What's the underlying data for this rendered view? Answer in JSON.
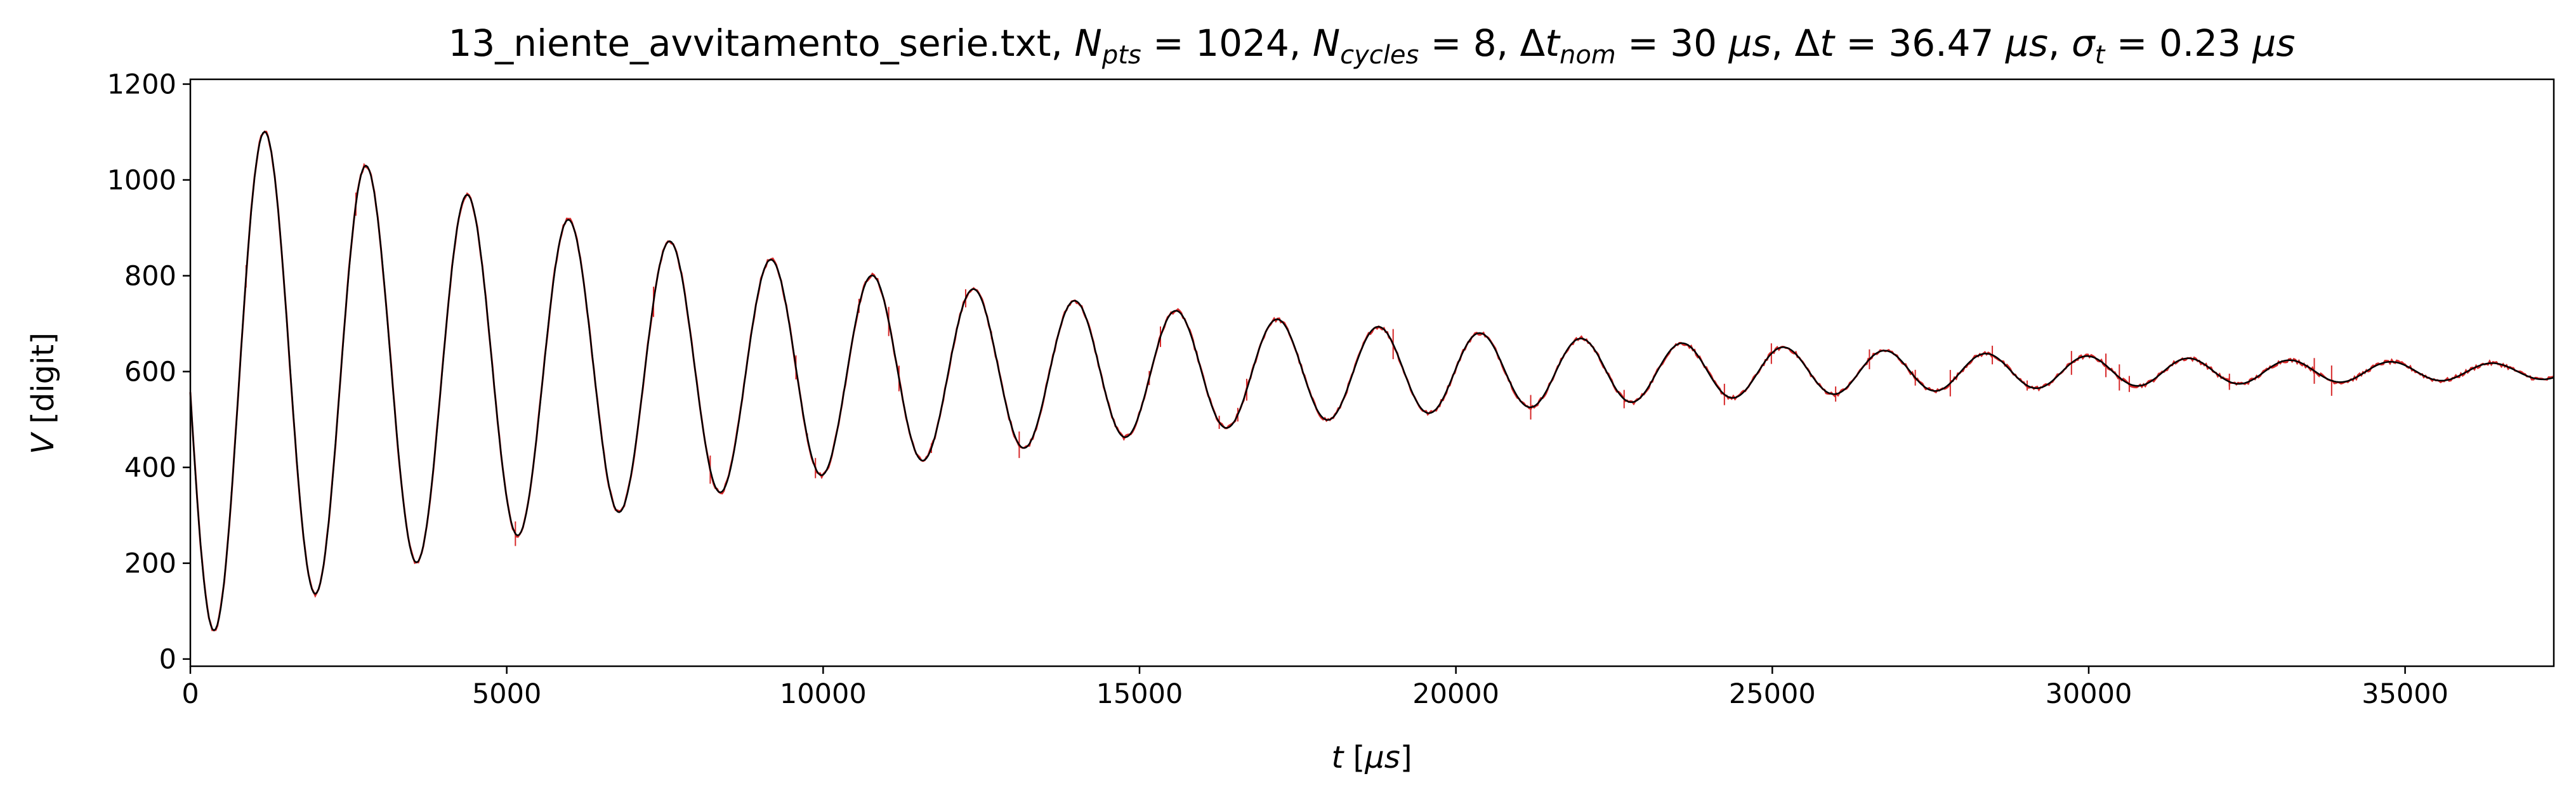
{
  "chart_data": {
    "type": "line",
    "title": {
      "file": "13_niente_avvitamento_serie.txt",
      "sep": ", ",
      "npts_sym": "N",
      "npts_sub": "pts",
      "npts_val": " = 1024",
      "ncyc_sym": "N",
      "ncyc_sub": "cycles",
      "ncyc_val": " = 8",
      "dtnom_delta": "Δ",
      "dtnom_sym": "t",
      "dtnom_sub": "nom",
      "dtnom_eq": " = 30 ",
      "dtnom_unit": "μs",
      "dt_delta": "Δ",
      "dt_sym": "t",
      "dt_eq": " = 36.47 ",
      "dt_unit": "μs",
      "sig_sym": "σ",
      "sig_sub": "t",
      "sig_eq": " = 0.23 ",
      "sig_unit": "μs"
    },
    "xlabel": {
      "sym": "t",
      "open": " [",
      "unit": "μs",
      "close": "]"
    },
    "ylabel": {
      "sym": "V",
      "rest": " [digit]"
    },
    "xlim": [
      0,
      37350
    ],
    "ylim": [
      -15,
      1210
    ],
    "x_ticks": [
      "0",
      "5000",
      "10000",
      "15000",
      "20000",
      "25000",
      "30000",
      "35000"
    ],
    "y_ticks": [
      "0",
      "200",
      "400",
      "600",
      "800",
      "1000",
      "1200"
    ],
    "grid": false,
    "legend": "none",
    "signal": {
      "offset": 600,
      "amplitude": 560,
      "decay_time": 10500,
      "period": 1600,
      "first_peak_t": 1180,
      "t_start": 0,
      "t_end": 37350
    },
    "series": [
      {
        "color": "#d62728"
      },
      {
        "color": "#000000"
      }
    ]
  }
}
